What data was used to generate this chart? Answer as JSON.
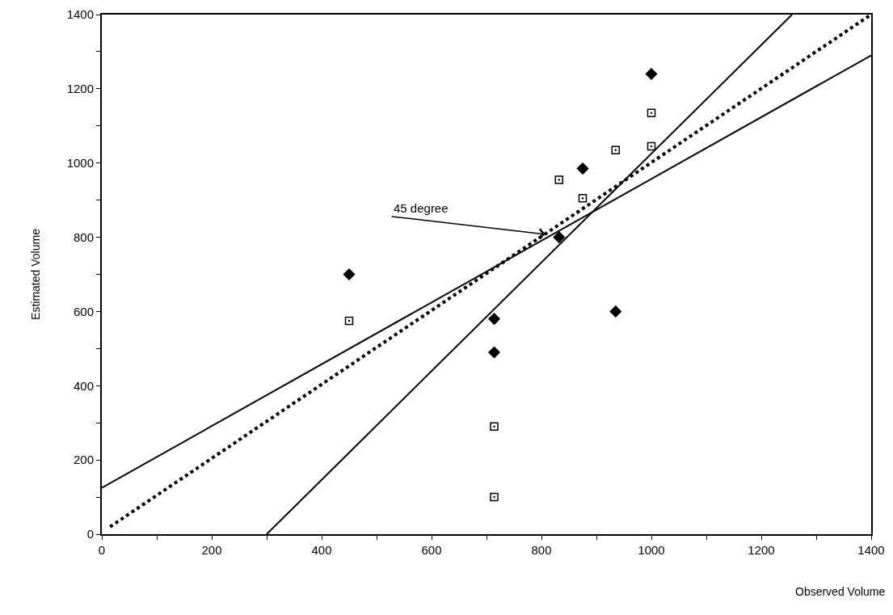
{
  "chart_data": {
    "type": "scatter",
    "xlabel": "Observed Volume",
    "ylabel": "Estimated Volume",
    "xlim": [
      0,
      1400
    ],
    "ylim": [
      0,
      1400
    ],
    "xticks": [
      0,
      {
        "value": 100,
        "label": null
      },
      200,
      {
        "value": 300,
        "label": null
      },
      400,
      {
        "value": 500,
        "label": null
      },
      600,
      {
        "value": 700,
        "label": null
      },
      800,
      {
        "value": 900,
        "label": null
      },
      1000,
      {
        "value": 1100,
        "label": null
      },
      1200,
      {
        "value": 1300,
        "label": null
      },
      1400
    ],
    "yticks": [
      0,
      {
        "value": 100,
        "label": null
      },
      200,
      {
        "value": 300,
        "label": null
      },
      400,
      {
        "value": 500,
        "label": null
      },
      600,
      {
        "value": 700,
        "label": null
      },
      800,
      {
        "value": 900,
        "label": null
      },
      1000,
      {
        "value": 1100,
        "label": null
      },
      1200,
      {
        "value": 1300,
        "label": null
      },
      1400
    ],
    "grid": false,
    "series": [
      {
        "marker": "diamond",
        "color": "#000000",
        "x": [
          450,
          714,
          714,
          832,
          875,
          935,
          1000
        ],
        "values": [
          700,
          580,
          490,
          800,
          985,
          600,
          1240
        ]
      },
      {
        "marker": "square",
        "color": "#000000",
        "x": [
          450,
          714,
          714,
          832,
          875,
          935,
          1000,
          1000
        ],
        "values": [
          575,
          290,
          100,
          955,
          905,
          1035,
          1045,
          1135
        ]
      },
      {
        "type": "line",
        "marker": "none",
        "line_style": "solid",
        "color": "#000000",
        "x": [
          0,
          1400
        ],
        "values": [
          125,
          1290
        ]
      },
      {
        "type": "line",
        "marker": "none",
        "line_style": "solid",
        "color": "#000000",
        "x": [
          300,
          1256
        ],
        "values": [
          0,
          1400
        ]
      },
      {
        "type": "line",
        "marker": "none",
        "line_style": "dotted",
        "color": "#000000",
        "x": [
          15,
          1400
        ],
        "values": [
          20,
          1400
        ]
      }
    ],
    "annotations": [
      {
        "text": "45 degree",
        "x": 807,
        "y": 808
      }
    ]
  }
}
